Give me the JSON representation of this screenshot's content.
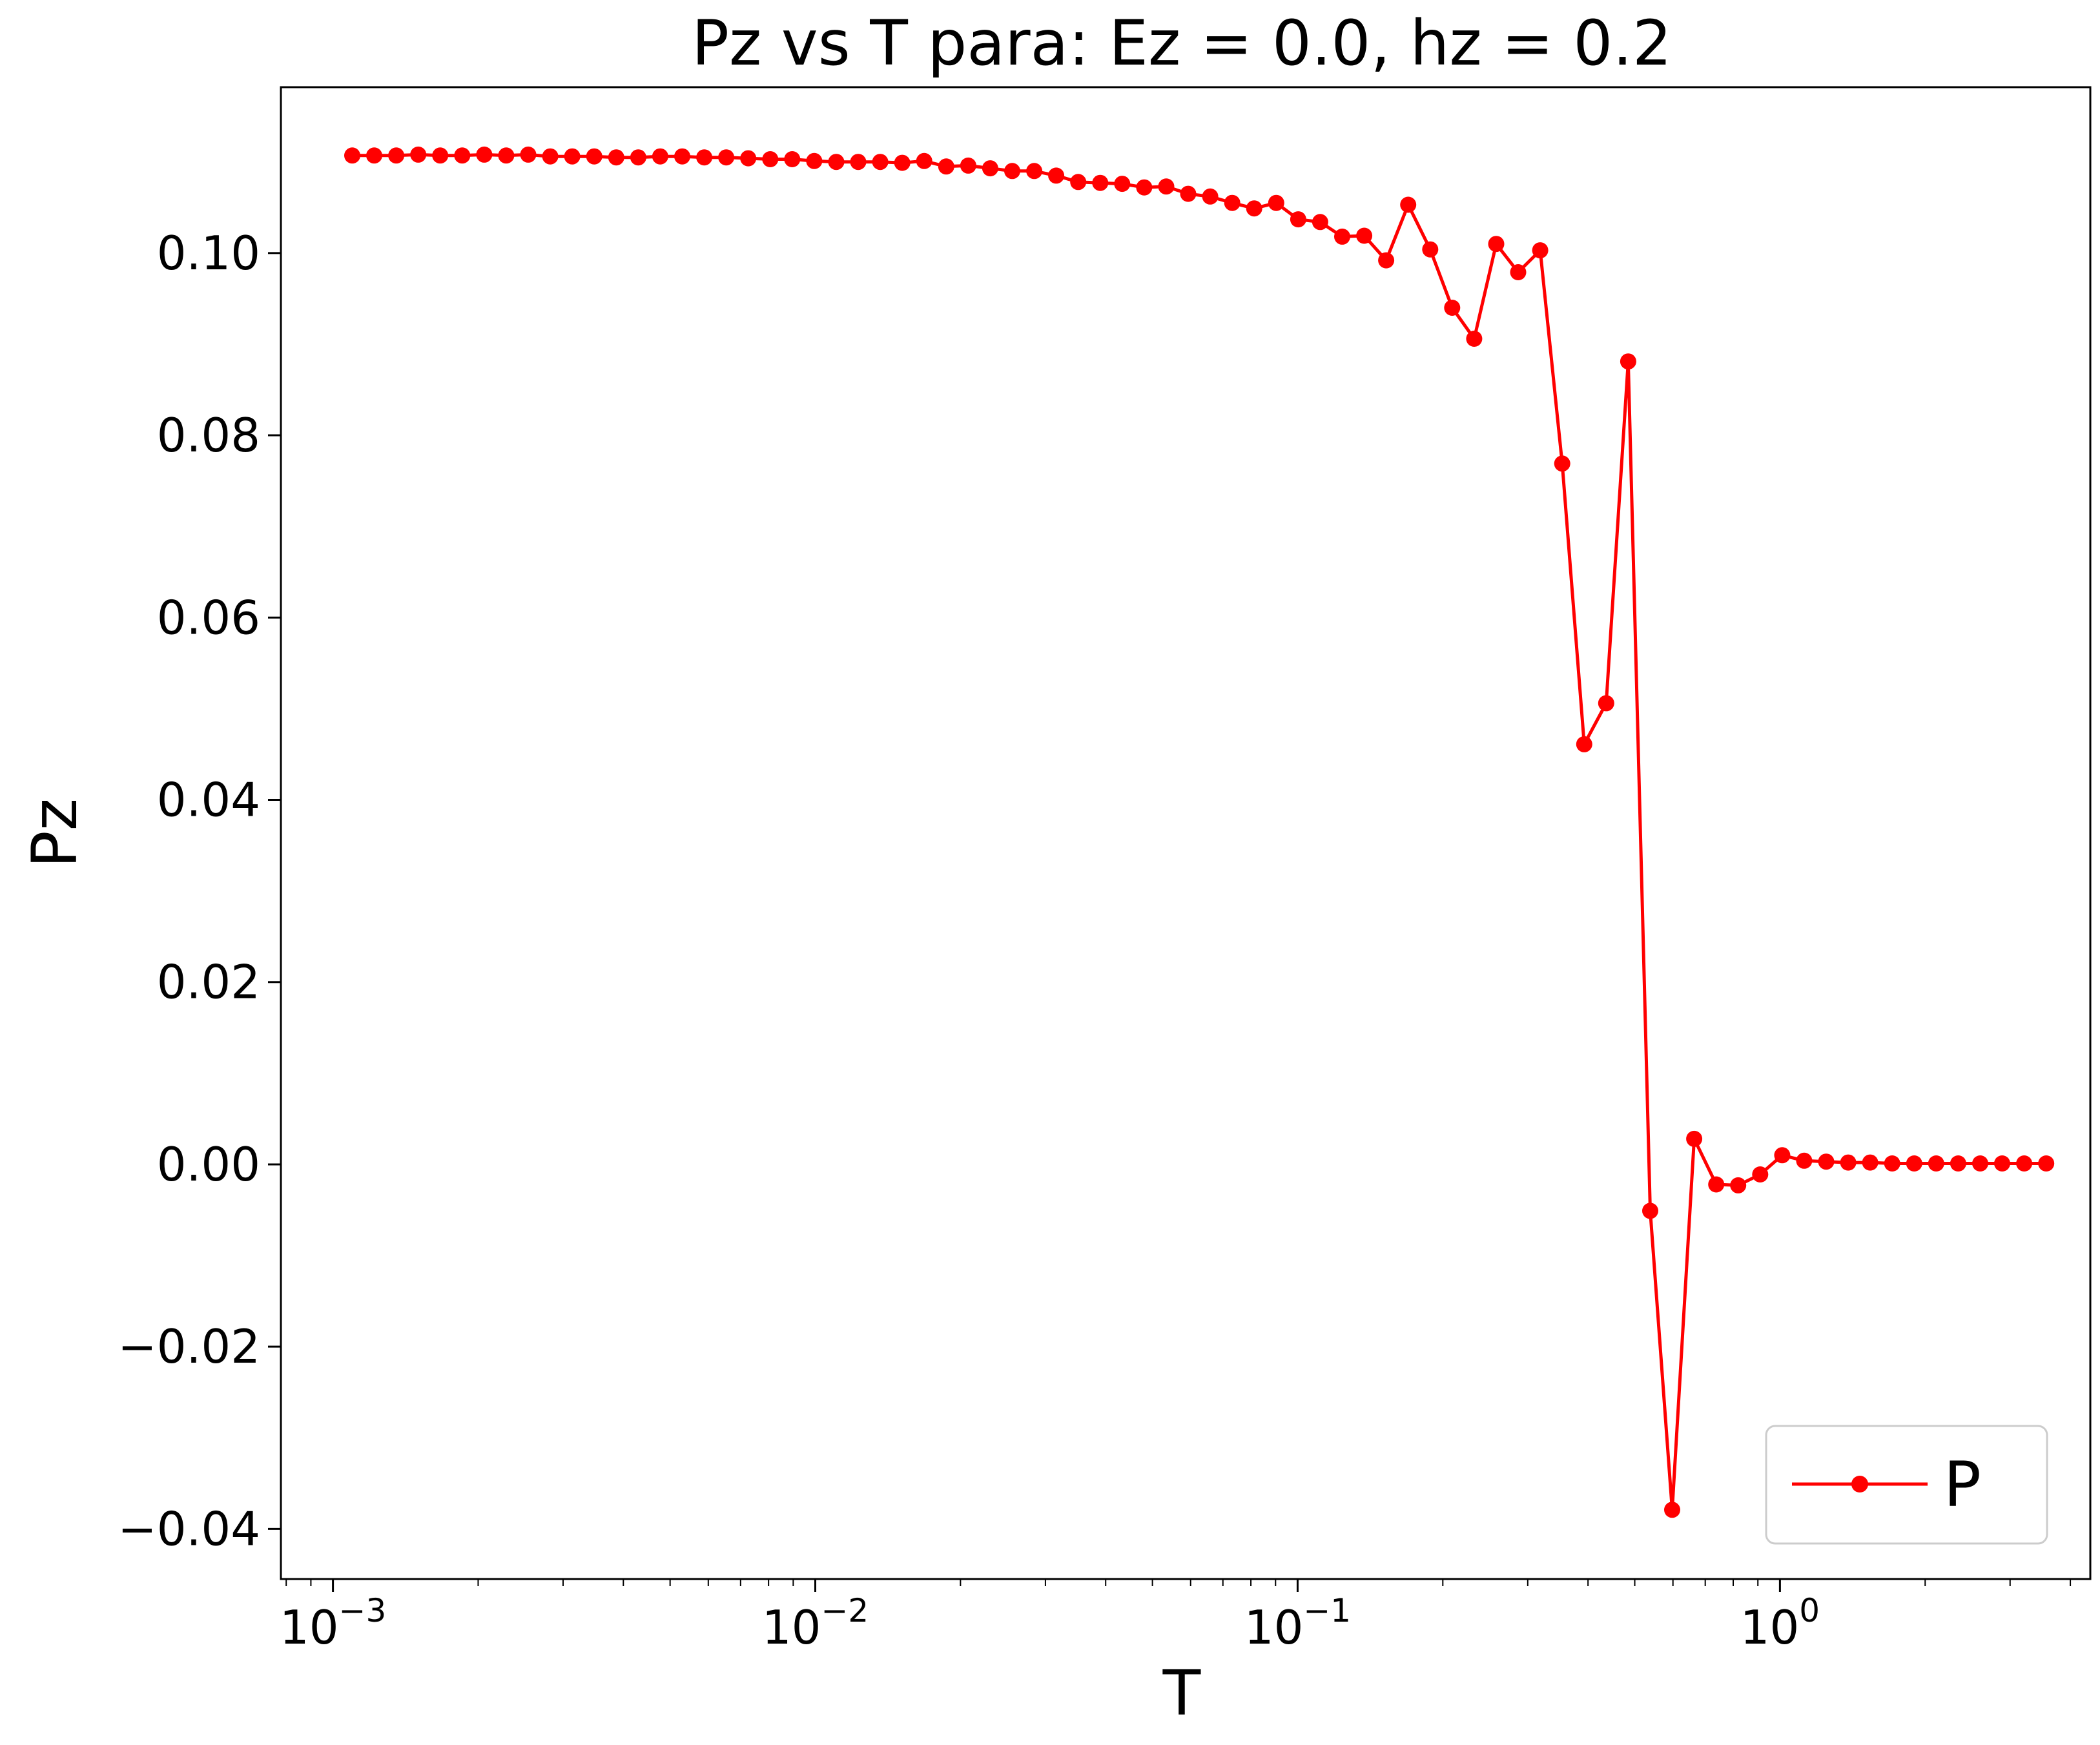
{
  "chart_data": {
    "type": "line",
    "title": "Pz vs T para: Ez = 0.0, hz = 0.2",
    "xlabel": "T",
    "ylabel": "Pz",
    "xscale": "log",
    "xlim": [
      0.00078,
      4.4
    ],
    "ylim": [
      -0.0455,
      0.1182
    ],
    "grid": false,
    "legend_position": "bottom-right",
    "y_ticks": [
      {
        "value": -0.04,
        "label": "−0.04"
      },
      {
        "value": -0.02,
        "label": "−0.02"
      },
      {
        "value": 0.0,
        "label": "0.00"
      },
      {
        "value": 0.02,
        "label": "0.02"
      },
      {
        "value": 0.04,
        "label": "0.04"
      },
      {
        "value": 0.06,
        "label": "0.06"
      },
      {
        "value": 0.08,
        "label": "0.08"
      },
      {
        "value": 0.1,
        "label": "0.10"
      }
    ],
    "x_ticks": [
      {
        "value": 0.001,
        "base": "10",
        "exp": "−3"
      },
      {
        "value": 0.01,
        "base": "10",
        "exp": "−2"
      },
      {
        "value": 0.1,
        "base": "10",
        "exp": "−1"
      },
      {
        "value": 1,
        "base": "10",
        "exp": "0"
      }
    ],
    "series": [
      {
        "name": "P",
        "color": "#ff0000",
        "x_log_start": -2.96,
        "x_log_step": 0.04561,
        "values": [
          0.1107,
          0.1107,
          0.1107,
          0.1108,
          0.1107,
          0.1107,
          0.1108,
          0.1107,
          0.1108,
          0.1106,
          0.1106,
          0.1106,
          0.1105,
          0.1105,
          0.1106,
          0.1106,
          0.1105,
          0.1105,
          0.1104,
          0.1103,
          0.1103,
          0.1101,
          0.11,
          0.11,
          0.11,
          0.1099,
          0.1101,
          0.1095,
          0.1096,
          0.1093,
          0.109,
          0.109,
          0.1085,
          0.1078,
          0.1077,
          0.1076,
          0.1072,
          0.1073,
          0.1065,
          0.1062,
          0.1055,
          0.1049,
          0.1055,
          0.1037,
          0.1034,
          0.1018,
          0.1019,
          0.0992,
          0.1053,
          0.1004,
          0.094,
          0.0906,
          0.101,
          0.0979,
          0.1003,
          0.0769,
          0.0461,
          0.0506,
          0.0881,
          -0.0051,
          -0.0379,
          0.0028,
          -0.0022,
          -0.0023,
          -0.0011,
          0.001,
          0.0004,
          0.0003,
          0.0002,
          0.0002,
          0.0001,
          0.0001,
          0.0001,
          0.0001,
          0.0001,
          0.0001,
          0.0001,
          0.0001
        ]
      }
    ]
  }
}
